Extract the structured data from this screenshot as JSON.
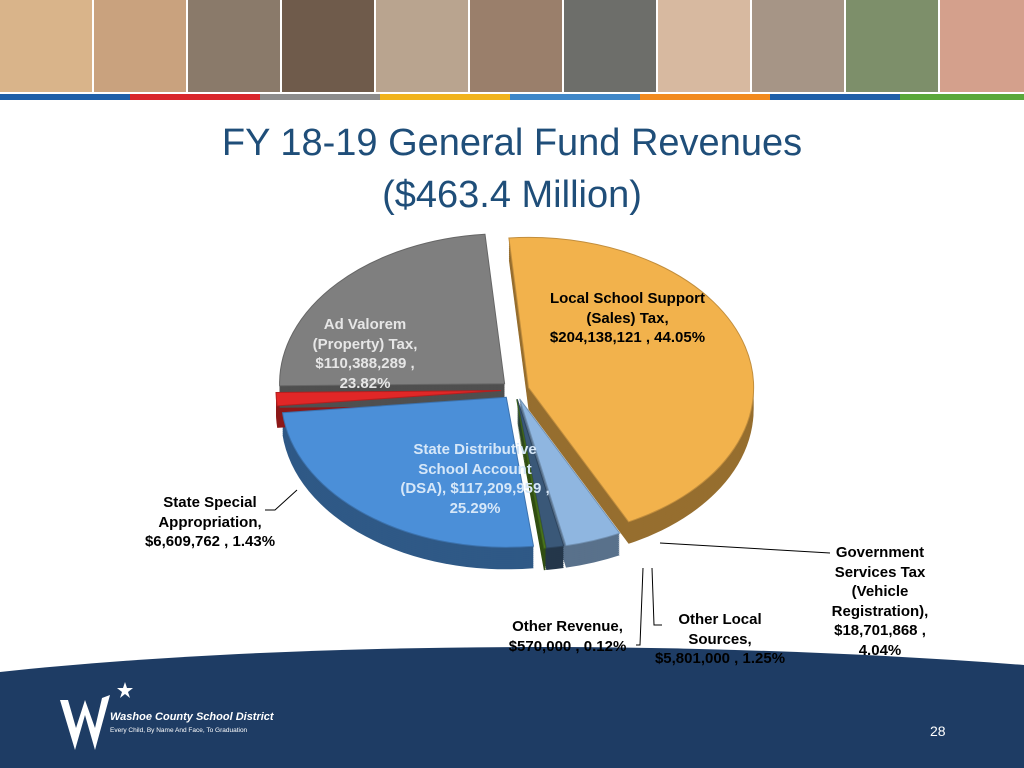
{
  "chart_data": {
    "type": "pie",
    "title": "FY 18-19 General Fund Revenues",
    "subtitle": "($463.4 Million)",
    "categories": [
      "Local School Support (Sales) Tax,",
      "Government Services Tax (Vehicle Registration),",
      "Other Local Sources,",
      "Other Revenue,",
      "State Distributive School Account (DSA),",
      "State Special Appropriation,",
      "Ad Valorem (Property) Tax,"
    ],
    "values": [
      204138121,
      18701868,
      5801000,
      570000,
      117209959,
      6609762,
      110388289
    ],
    "value_labels": [
      "$204,138,121 , 44.05%",
      "$18,701,868 , 4.04%",
      "$5,801,000 , 1.25%",
      "$570,000 , 0.12%",
      "$117,209,959 , 25.29%",
      "$6,609,762 , 1.43%",
      "$110,388,289 , 23.82%"
    ],
    "colors": [
      "#f2b24c",
      "#8fb6e0",
      "#3a5878",
      "#4f7d1f",
      "#4b8fd8",
      "#e12727",
      "#7f7f7f"
    ]
  },
  "footer": {
    "organization": "Washoe County School District",
    "motto": "Every Child, By Name And Face, To Graduation",
    "page_number": "28"
  }
}
